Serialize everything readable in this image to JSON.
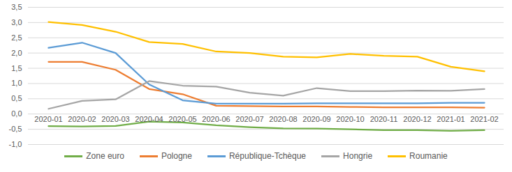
{
  "chart_data": {
    "type": "line",
    "x": [
      "2020-01",
      "2020-02",
      "2020-03",
      "2020-04",
      "2020-05",
      "2020-06",
      "2020-07",
      "2020-08",
      "2020-09",
      "2020-10",
      "2020-11",
      "2020-12",
      "2021-01",
      "2021-02"
    ],
    "series": [
      {
        "name": "Zone euro",
        "color": "#70ad47",
        "values": [
          -0.4,
          -0.41,
          -0.39,
          -0.25,
          -0.28,
          -0.37,
          -0.43,
          -0.47,
          -0.48,
          -0.5,
          -0.53,
          -0.53,
          -0.55,
          -0.53
        ]
      },
      {
        "name": "Pologne",
        "color": "#ed7d31",
        "values": [
          1.71,
          1.71,
          1.45,
          0.82,
          0.65,
          0.27,
          0.26,
          0.25,
          0.25,
          0.23,
          0.22,
          0.22,
          0.22,
          0.21
        ]
      },
      {
        "name": "République-Tchèque",
        "color": "#5b9bd5",
        "values": [
          2.17,
          2.34,
          2.0,
          0.97,
          0.45,
          0.34,
          0.34,
          0.34,
          0.35,
          0.35,
          0.35,
          0.35,
          0.37,
          0.37
        ]
      },
      {
        "name": "Hongrie",
        "color": "#a5a5a5",
        "values": [
          0.17,
          0.43,
          0.48,
          1.08,
          0.93,
          0.9,
          0.7,
          0.6,
          0.85,
          0.75,
          0.75,
          0.77,
          0.76,
          0.82
        ]
      },
      {
        "name": "Roumanie",
        "color": "#ffc000",
        "values": [
          3.02,
          2.92,
          2.7,
          2.36,
          2.3,
          2.05,
          2.0,
          1.88,
          1.86,
          1.97,
          1.91,
          1.88,
          1.55,
          1.4
        ]
      }
    ],
    "ylim": [
      -1.0,
      3.5
    ],
    "yticks": [
      {
        "value": -1.0,
        "label": "-1,0"
      },
      {
        "value": -0.5,
        "label": "-0,5"
      },
      {
        "value": 0,
        "label": "0,0"
      },
      {
        "value": 0.5,
        "label": "0,5"
      },
      {
        "value": 1.0,
        "label": "1,0"
      },
      {
        "value": 1.5,
        "label": "1,5"
      },
      {
        "value": 2.0,
        "label": "2,0"
      },
      {
        "value": 2.5,
        "label": "2,5"
      },
      {
        "value": 3.0,
        "label": "3,0"
      },
      {
        "value": 3.5,
        "label": "3,5"
      }
    ],
    "grid": true,
    "legend": "bottom"
  }
}
